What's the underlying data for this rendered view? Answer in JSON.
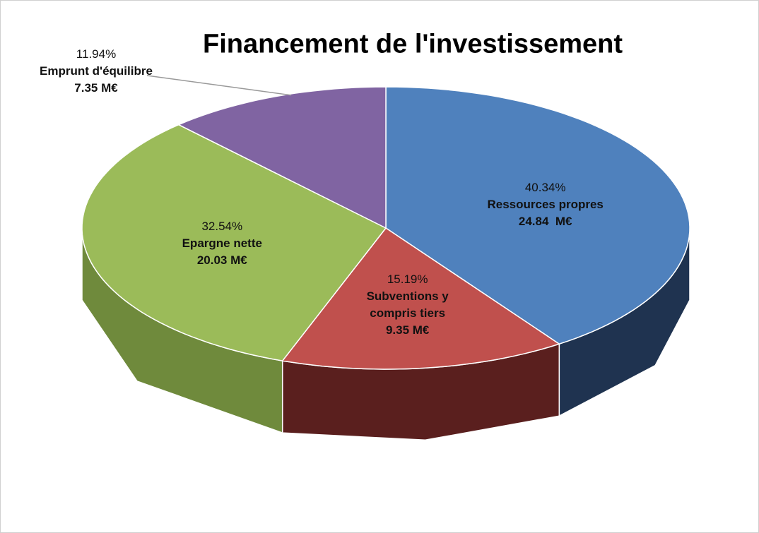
{
  "chart_data": {
    "type": "pie",
    "title": "Financement de l'investissement",
    "categories": [
      "Ressources propres",
      "Subventions y compris tiers",
      "Epargne nette",
      "Emprunt d'équilibre"
    ],
    "values": [
      40.34,
      15.19,
      32.54,
      11.94
    ],
    "value_labels": [
      "40.34%",
      "15.19%",
      "32.54%",
      "11.94%"
    ],
    "amounts": [
      24.84,
      9.35,
      20.03,
      7.35
    ],
    "amount_labels": [
      "24.84  M€",
      "9.35 M€",
      "20.03 M€",
      "7.35 M€"
    ],
    "colors": [
      "#4f81bd",
      "#c0504d",
      "#9bbb59",
      "#8064a2"
    ],
    "side_colors": [
      "#1f3350",
      "#5a1f1e",
      "#6f8a3c",
      "#4d3a66"
    ]
  }
}
